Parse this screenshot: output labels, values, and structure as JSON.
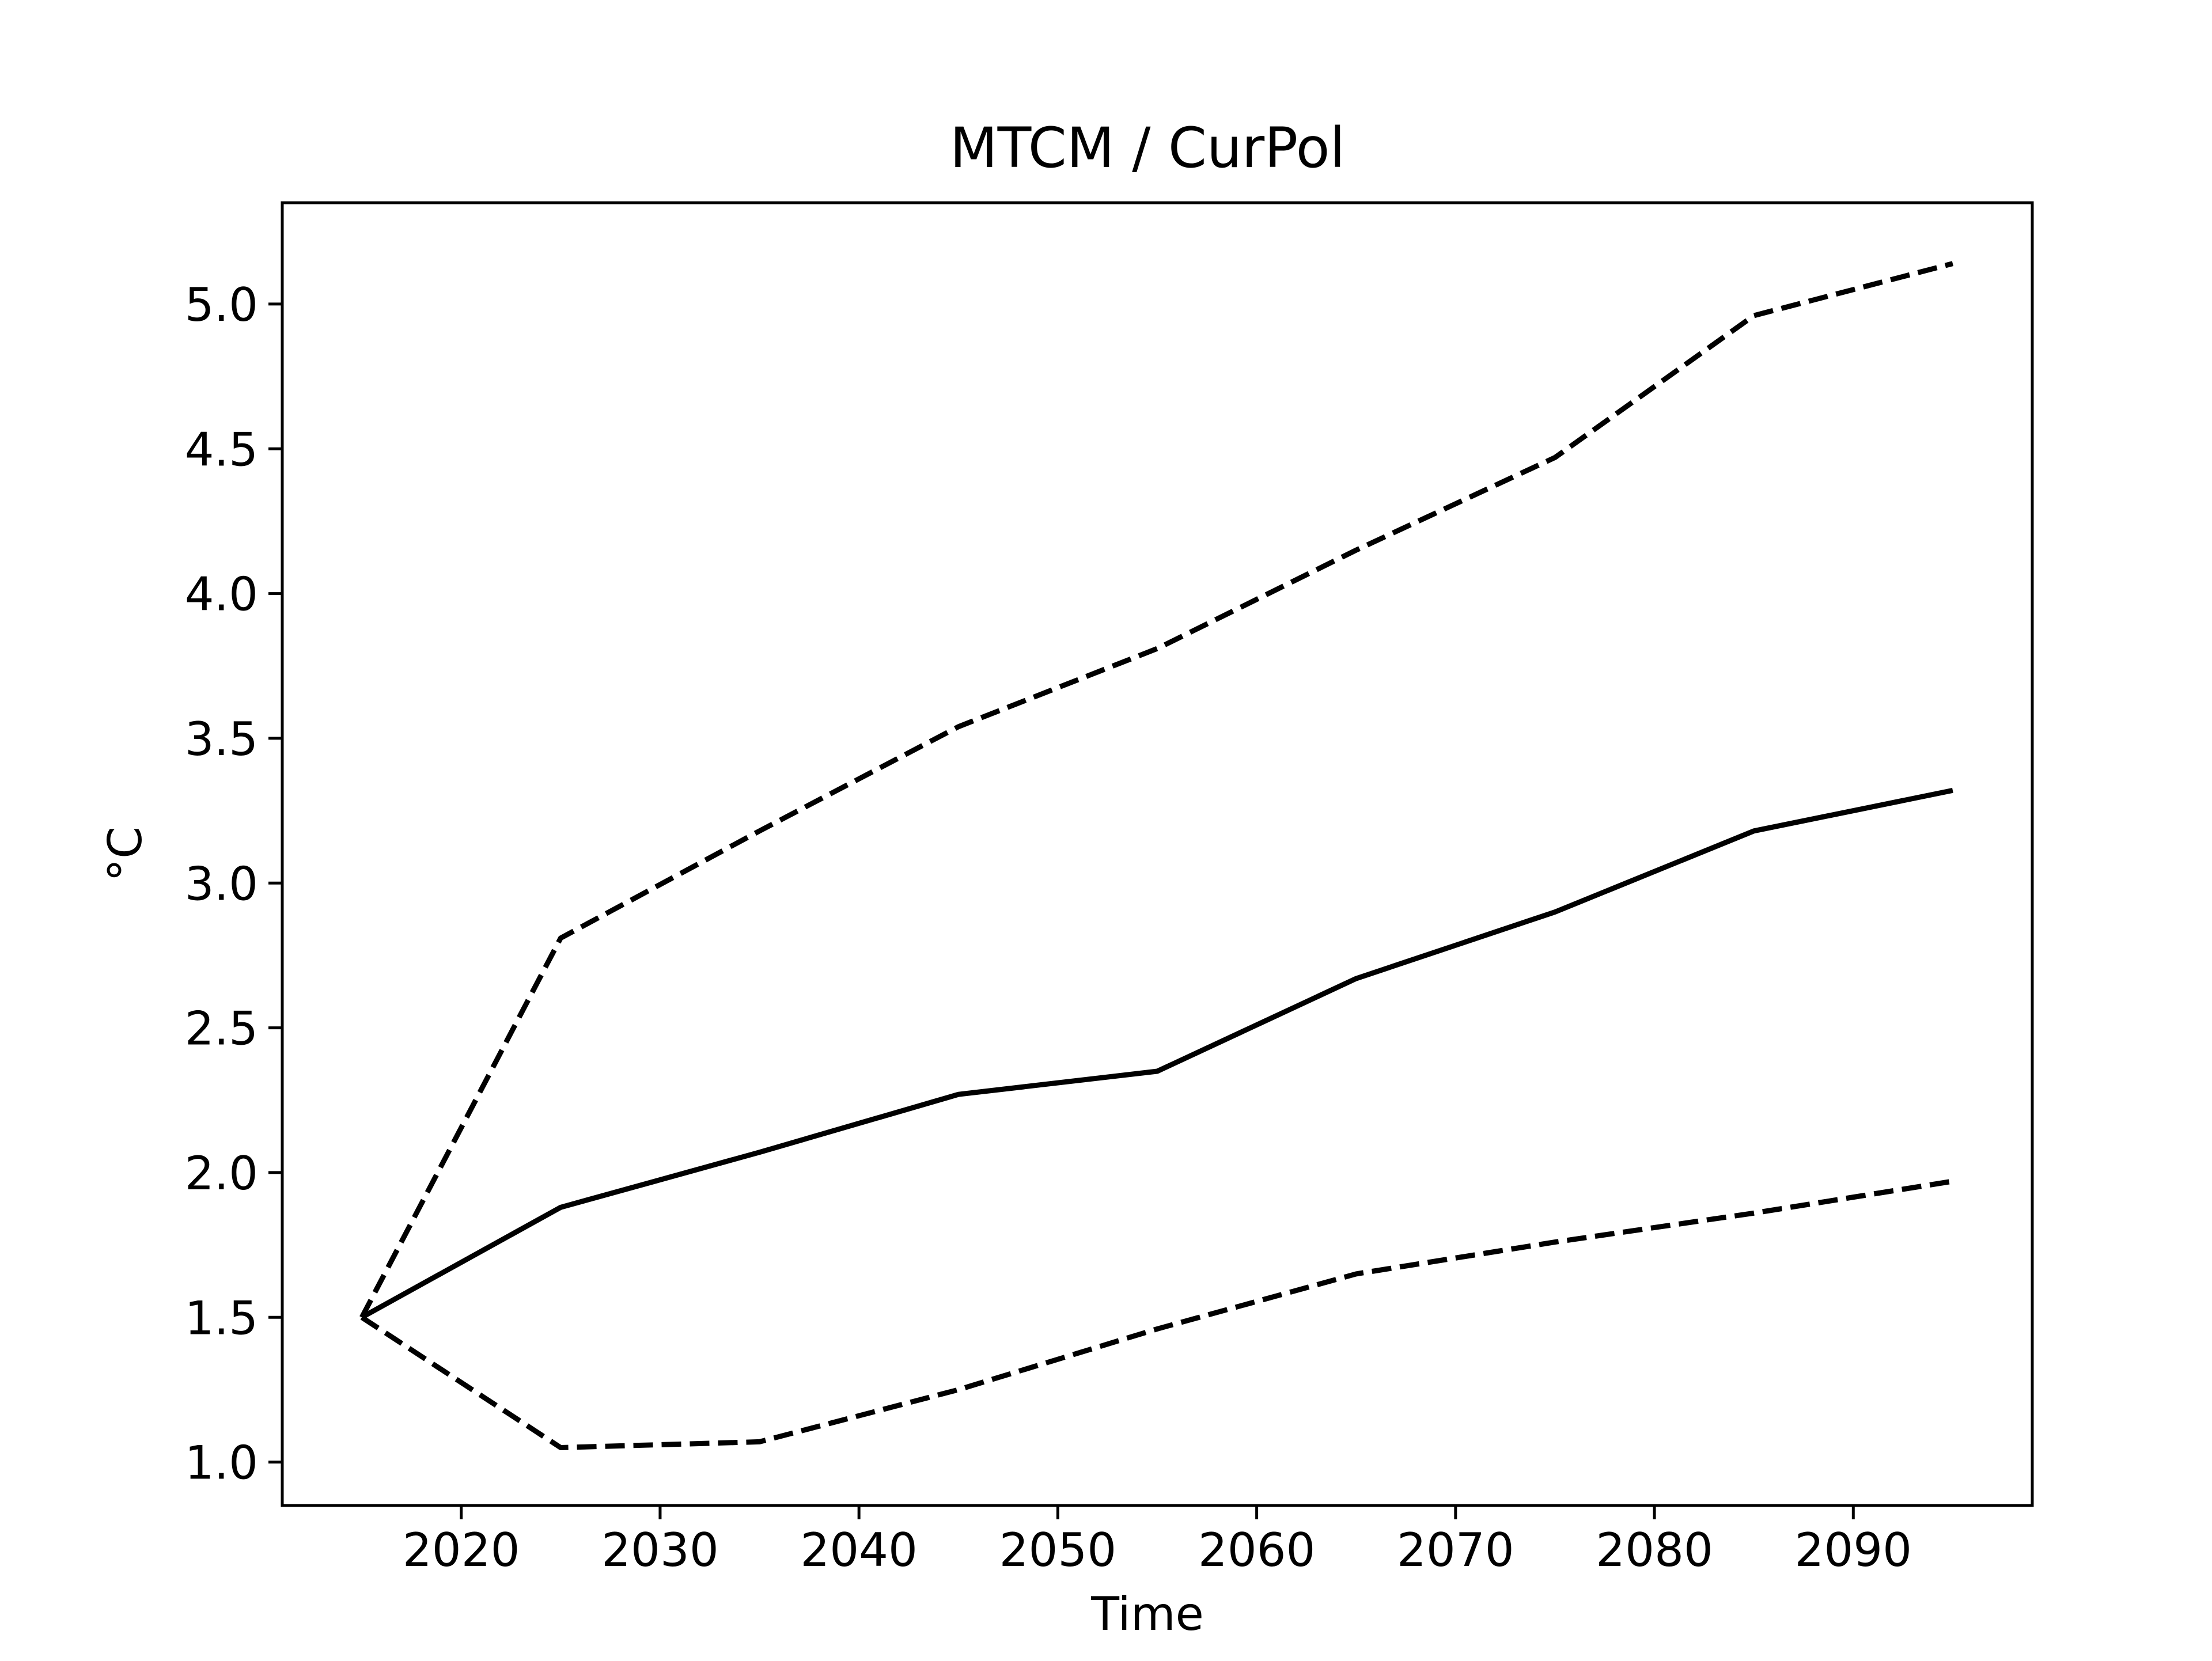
{
  "chart_data": {
    "type": "line",
    "title": "MTCM / CurPol",
    "xlabel": "Time",
    "ylabel": "°C",
    "xlim": [
      2011,
      2099
    ],
    "ylim": [
      0.85,
      5.35
    ],
    "xticks": [
      2020,
      2030,
      2040,
      2050,
      2060,
      2070,
      2080,
      2090
    ],
    "yticks": [
      1.0,
      1.5,
      2.0,
      2.5,
      3.0,
      3.5,
      4.0,
      4.5,
      5.0
    ],
    "ytick_labels": [
      "1.0",
      "1.5",
      "2.0",
      "2.5",
      "3.0",
      "3.5",
      "4.0",
      "4.5",
      "5.0"
    ],
    "x": [
      2015,
      2025,
      2035,
      2045,
      2055,
      2065,
      2075,
      2085,
      2095
    ],
    "grid": false,
    "legend": "none",
    "series": [
      {
        "style": "solid",
        "color": "#000000",
        "values": [
          1.5,
          1.88,
          2.07,
          2.27,
          2.35,
          2.67,
          2.9,
          3.18,
          3.32
        ]
      },
      {
        "style": "dashed",
        "color": "#000000",
        "values": [
          1.5,
          2.81,
          3.18,
          3.54,
          3.81,
          4.15,
          4.47,
          4.96,
          5.14
        ]
      },
      {
        "style": "dashed",
        "color": "#000000",
        "values": [
          1.5,
          1.05,
          1.07,
          1.25,
          1.46,
          1.65,
          1.76,
          1.86,
          1.97
        ]
      }
    ]
  }
}
